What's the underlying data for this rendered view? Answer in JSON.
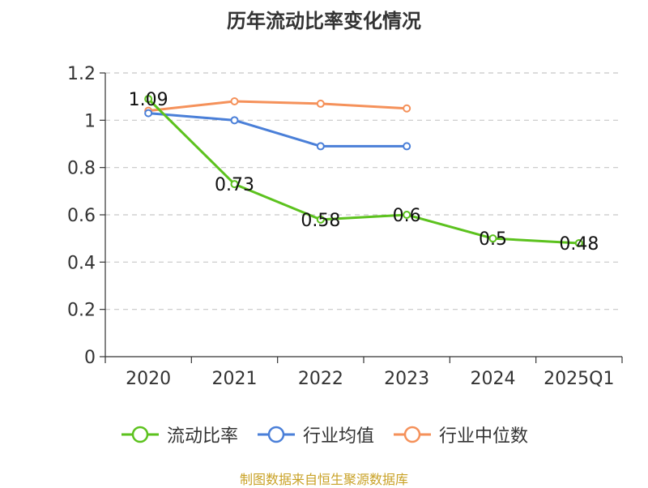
{
  "source_note": "制图数据来自恒生聚源数据库",
  "chart_data": {
    "type": "line",
    "title": "历年流动比率变化情况",
    "categories": [
      "2020",
      "2021",
      "2022",
      "2023",
      "2024",
      "2025Q1"
    ],
    "ylim": [
      0,
      1.2
    ],
    "yticks": [
      0,
      0.2,
      0.4,
      0.6,
      0.8,
      1,
      1.2
    ],
    "ytick_labels": [
      "0",
      "0.2",
      "0.4",
      "0.6",
      "0.8",
      "1",
      "1.2"
    ],
    "grid": true,
    "legend_position": "bottom",
    "series": [
      {
        "name": "流动比率",
        "color": "#5cc21e",
        "values": [
          1.09,
          0.73,
          0.58,
          0.6,
          0.5,
          0.48
        ],
        "labels": [
          "1.09",
          "0.73",
          "0.58",
          "0.6",
          "0.5",
          "0.48"
        ]
      },
      {
        "name": "行业均值",
        "color": "#4a7fd8",
        "values": [
          1.03,
          1.0,
          0.89,
          0.89,
          null,
          null
        ],
        "labels": null
      },
      {
        "name": "行业中位数",
        "color": "#f5915a",
        "values": [
          1.04,
          1.08,
          1.07,
          1.05,
          null,
          null
        ],
        "labels": null
      }
    ]
  }
}
